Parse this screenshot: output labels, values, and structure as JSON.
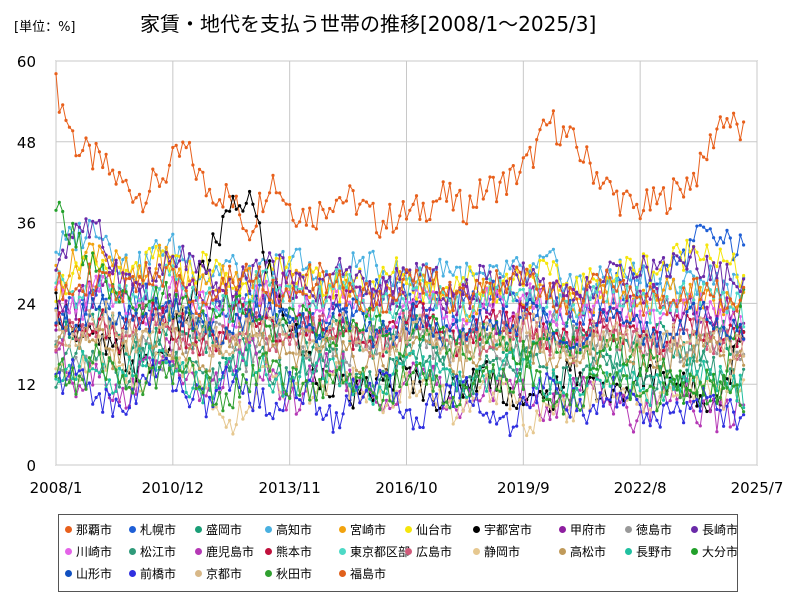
{
  "unit_label": "[単位：%]",
  "chart_data": {
    "type": "line",
    "title": "家賃・地代を支払う世帯の推移[2008/1～2025/3]",
    "ylim": [
      0,
      60
    ],
    "yticks": [
      0,
      12,
      24,
      36,
      48,
      60
    ],
    "xticks": [
      "2008/1",
      "2010/12",
      "2013/11",
      "2016/10",
      "2019/9",
      "2022/8",
      "2025/7"
    ],
    "x_start": "2008/1",
    "x_end": "2025/7",
    "last": "2025/3",
    "grid": true,
    "legend_position": "bottom",
    "series": [
      {
        "name": "那覇市",
        "color": "#e8601c",
        "anchors": [
          56,
          47,
          45,
          42,
          40,
          43,
          47,
          41,
          40,
          35,
          43,
          38,
          37,
          40,
          39,
          36,
          37,
          38,
          40,
          38,
          41,
          42,
          45,
          51,
          48,
          44,
          40,
          38,
          39,
          41,
          44,
          52,
          49
        ]
      },
      {
        "name": "札幌市",
        "color": "#1f5fd6",
        "anchors": [
          22,
          24,
          26,
          23,
          25,
          24,
          22,
          21,
          23,
          25,
          24,
          22,
          20,
          23,
          24,
          26,
          25,
          23,
          22,
          24,
          25,
          26,
          24,
          23,
          22,
          24,
          26,
          27,
          28,
          30,
          34,
          33,
          32
        ]
      },
      {
        "name": "盛岡市",
        "color": "#1a9e77",
        "anchors": [
          20,
          18,
          22,
          19,
          17,
          21,
          20,
          18,
          16,
          19,
          21,
          18,
          17,
          20,
          19,
          18,
          21,
          20,
          17,
          19,
          20,
          18,
          17,
          19,
          20,
          18,
          16,
          18,
          19,
          17,
          18,
          19,
          18
        ]
      },
      {
        "name": "高知市",
        "color": "#49b0e0",
        "anchors": [
          32,
          34,
          36,
          30,
          29,
          33,
          31,
          28,
          30,
          27,
          29,
          31,
          28,
          27,
          30,
          29,
          28,
          27,
          30,
          28,
          27,
          29,
          28,
          30,
          27,
          26,
          29,
          28,
          27,
          26,
          28,
          27,
          26
        ]
      },
      {
        "name": "宮崎市",
        "color": "#f2a30f",
        "anchors": [
          28,
          30,
          33,
          29,
          27,
          31,
          28,
          26,
          29,
          27,
          25,
          28,
          26,
          27,
          25,
          24,
          27,
          26,
          25,
          23,
          26,
          25,
          24,
          26,
          23,
          25,
          24,
          23,
          25,
          26,
          24,
          23,
          25
        ]
      },
      {
        "name": "仙台市",
        "color": "#f5e50c",
        "anchors": [
          26,
          28,
          30,
          27,
          29,
          31,
          28,
          30,
          27,
          26,
          28,
          29,
          27,
          26,
          28,
          27,
          29,
          26,
          27,
          28,
          26,
          27,
          29,
          28,
          26,
          27,
          28,
          30,
          29,
          31,
          33,
          30,
          28
        ]
      },
      {
        "name": "宇都宮市",
        "color": "#000000",
        "anchors": [
          24,
          20,
          18,
          16,
          14,
          17,
          22,
          30,
          37,
          40,
          28,
          20,
          14,
          12,
          10,
          12,
          14,
          12,
          10,
          12,
          14,
          11,
          9,
          10,
          14,
          12,
          10,
          12,
          14,
          12,
          10,
          11,
          20
        ]
      },
      {
        "name": "甲府市",
        "color": "#8e1fa0",
        "anchors": [
          22,
          24,
          26,
          28,
          25,
          23,
          27,
          26,
          24,
          22,
          25,
          27,
          26,
          23,
          24,
          26,
          25,
          22,
          24,
          25,
          23,
          21,
          24,
          26,
          25,
          23,
          22,
          24,
          25,
          23,
          22,
          24,
          20
        ]
      },
      {
        "name": "徳島市",
        "color": "#999999",
        "anchors": [
          16,
          14,
          18,
          20,
          17,
          15,
          19,
          21,
          18,
          16,
          19,
          20,
          17,
          18,
          16,
          19,
          20,
          18,
          17,
          19,
          18,
          16,
          18,
          20,
          19,
          17,
          18,
          19,
          17,
          16,
          18,
          19,
          17
        ]
      },
      {
        "name": "長崎市",
        "color": "#6a2aa8",
        "anchors": [
          30,
          36,
          34,
          28,
          26,
          29,
          31,
          27,
          25,
          28,
          30,
          27,
          26,
          29,
          28,
          25,
          27,
          29,
          26,
          25,
          28,
          27,
          29,
          26,
          24,
          27,
          28,
          30,
          29,
          31,
          30,
          28,
          27
        ]
      },
      {
        "name": "川崎市",
        "color": "#e463e8",
        "anchors": [
          25,
          23,
          27,
          24,
          22,
          26,
          25,
          23,
          21,
          24,
          26,
          23,
          22,
          25,
          24,
          21,
          23,
          25,
          22,
          21,
          24,
          23,
          25,
          22,
          20,
          23,
          24,
          22,
          21,
          23,
          24,
          22,
          21
        ]
      },
      {
        "name": "松江市",
        "color": "#2f9a7a",
        "anchors": [
          14,
          16,
          15,
          13,
          17,
          16,
          14,
          12,
          15,
          17,
          14,
          13,
          16,
          15,
          13,
          12,
          15,
          16,
          14,
          12,
          14,
          16,
          15,
          13,
          12,
          14,
          15,
          13,
          12,
          14,
          15,
          13,
          12
        ]
      },
      {
        "name": "鹿児島市",
        "color": "#b538b5",
        "anchors": [
          18,
          12,
          15,
          9,
          14,
          17,
          13,
          10,
          14,
          18,
          12,
          9,
          13,
          16,
          11,
          8,
          12,
          15,
          10,
          8,
          11,
          14,
          9,
          8,
          11,
          13,
          9,
          7,
          10,
          12,
          8,
          7,
          9
        ]
      },
      {
        "name": "熊本市",
        "color": "#c0103c",
        "anchors": [
          20,
          22,
          21,
          19,
          23,
          22,
          20,
          18,
          21,
          23,
          20,
          19,
          22,
          21,
          19,
          18,
          21,
          22,
          20,
          18,
          20,
          22,
          21,
          19,
          18,
          20,
          21,
          19,
          18,
          20,
          21,
          19,
          18
        ]
      },
      {
        "name": "東京都区部",
        "color": "#4dd9c6",
        "anchors": [
          27,
          25,
          29,
          26,
          24,
          28,
          27,
          25,
          23,
          26,
          28,
          25,
          24,
          27,
          26,
          23,
          25,
          27,
          24,
          23,
          26,
          25,
          27,
          24,
          22,
          25,
          26,
          24,
          23,
          25,
          26,
          24,
          23
        ]
      },
      {
        "name": "広島市",
        "color": "#d05a7a",
        "anchors": [
          19,
          21,
          20,
          18,
          22,
          21,
          19,
          17,
          20,
          22,
          19,
          18,
          21,
          20,
          18,
          17,
          20,
          21,
          19,
          17,
          19,
          21,
          20,
          18,
          17,
          19,
          20,
          18,
          17,
          19,
          20,
          18,
          17
        ]
      },
      {
        "name": "静岡市",
        "color": "#e6c890",
        "anchors": [
          15,
          13,
          17,
          14,
          12,
          16,
          15,
          13,
          5,
          10,
          14,
          11,
          10,
          13,
          12,
          9,
          11,
          13,
          10,
          7,
          12,
          11,
          6,
          10,
          8,
          11,
          12,
          10,
          9,
          11,
          12,
          10,
          13
        ]
      },
      {
        "name": "高松市",
        "color": "#c09a5a",
        "anchors": [
          17,
          19,
          18,
          16,
          20,
          19,
          17,
          15,
          18,
          20,
          17,
          16,
          19,
          18,
          16,
          15,
          18,
          19,
          17,
          15,
          17,
          19,
          18,
          16,
          15,
          17,
          18,
          16,
          15,
          17,
          18,
          16,
          15
        ]
      },
      {
        "name": "長野市",
        "color": "#20c0a0",
        "anchors": [
          13,
          15,
          14,
          12,
          16,
          15,
          13,
          11,
          14,
          16,
          13,
          12,
          15,
          14,
          12,
          11,
          14,
          15,
          13,
          11,
          13,
          15,
          14,
          12,
          11,
          13,
          14,
          12,
          11,
          13,
          14,
          12,
          11
        ]
      },
      {
        "name": "大分市",
        "color": "#22a02a",
        "anchors": [
          38,
          33,
          28,
          24,
          22,
          25,
          23,
          21,
          24,
          22,
          20,
          23,
          21,
          19,
          22,
          20,
          18,
          21,
          19,
          17,
          20,
          18,
          16,
          19,
          17,
          15,
          18,
          16,
          14,
          12,
          10,
          12,
          25
        ]
      },
      {
        "name": "山形市",
        "color": "#1050c0",
        "anchors": [
          23,
          21,
          25,
          22,
          20,
          24,
          23,
          21,
          19,
          22,
          24,
          21,
          20,
          23,
          22,
          19,
          21,
          23,
          20,
          19,
          22,
          21,
          23,
          20,
          18,
          21,
          22,
          20,
          19,
          21,
          22,
          20,
          19
        ]
      },
      {
        "name": "前橋市",
        "color": "#3030e0",
        "anchors": [
          12,
          14,
          10,
          8,
          12,
          15,
          11,
          9,
          13,
          11,
          8,
          12,
          10,
          7,
          11,
          13,
          9,
          7,
          10,
          12,
          8,
          6,
          10,
          12,
          9,
          7,
          11,
          9,
          6,
          8,
          10,
          8,
          7
        ]
      },
      {
        "name": "京都市",
        "color": "#d8b888",
        "anchors": [
          21,
          19,
          23,
          20,
          18,
          22,
          21,
          19,
          17,
          20,
          22,
          19,
          18,
          21,
          20,
          17,
          19,
          21,
          18,
          17,
          20,
          19,
          21,
          18,
          16,
          19,
          20,
          18,
          17,
          19,
          20,
          18,
          17
        ]
      },
      {
        "name": "秋田市",
        "color": "#30a030",
        "anchors": [
          14,
          12,
          16,
          13,
          11,
          15,
          14,
          12,
          10,
          13,
          15,
          12,
          11,
          14,
          13,
          10,
          12,
          14,
          11,
          10,
          13,
          12,
          14,
          11,
          9,
          12,
          13,
          11,
          10,
          12,
          13,
          11,
          10
        ]
      },
      {
        "name": "福島市",
        "color": "#e0601c",
        "anchors": [
          26,
          28,
          27,
          25,
          29,
          28,
          26,
          24,
          27,
          29,
          26,
          25,
          28,
          27,
          25,
          24,
          27,
          28,
          26,
          24,
          26,
          28,
          27,
          25,
          24,
          26,
          27,
          25,
          24,
          26,
          27,
          25,
          24
        ]
      }
    ]
  }
}
